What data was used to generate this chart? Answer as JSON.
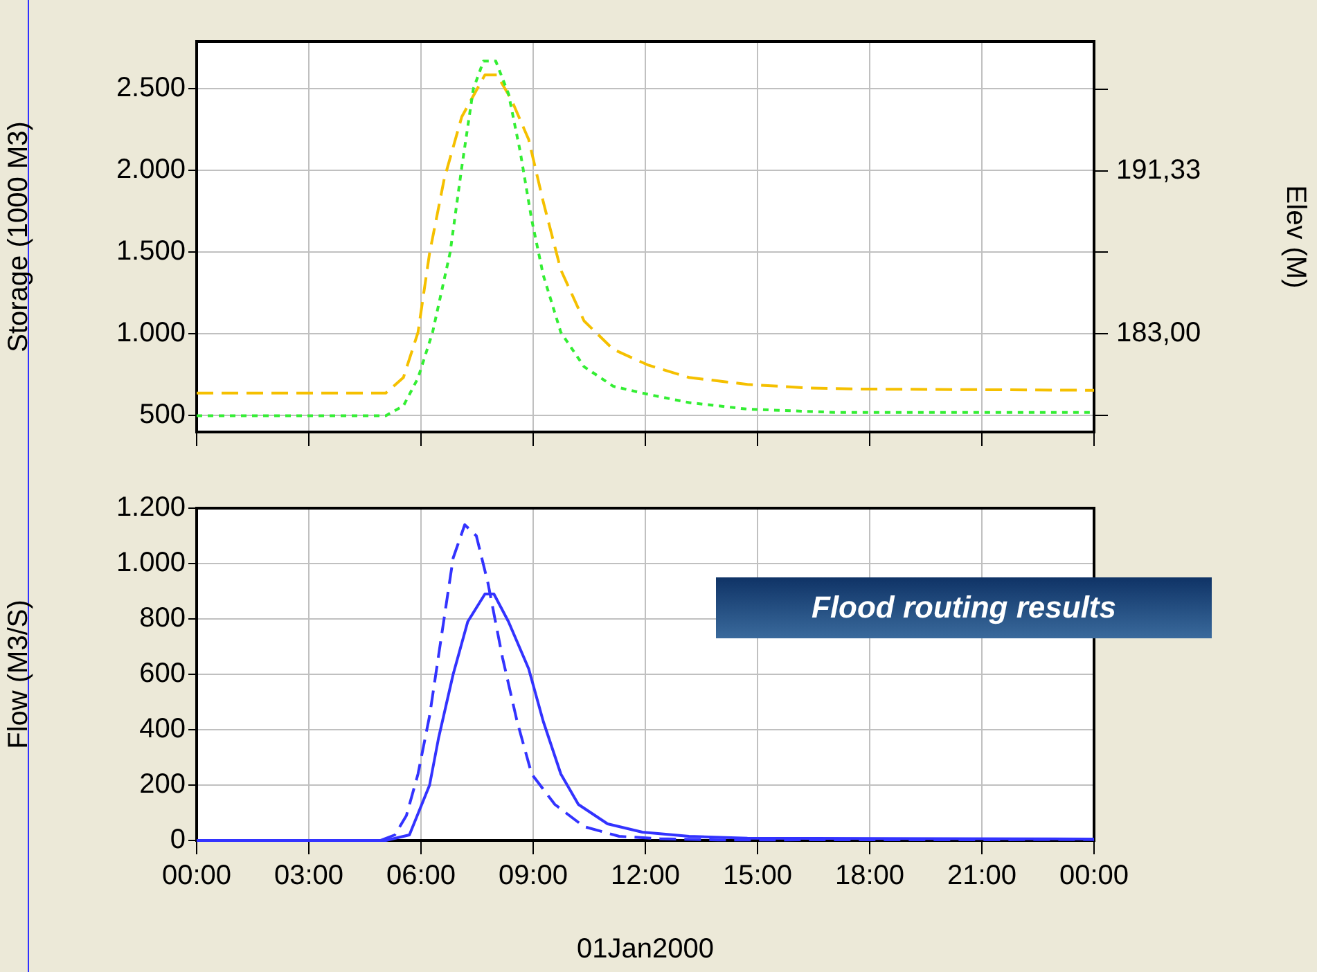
{
  "chart_data": [
    {
      "type": "line",
      "ylabel": "Storage (1000 M3)",
      "y2label": "Elev (M)",
      "xlim": [
        0,
        24
      ],
      "xticks": [
        0,
        3,
        6,
        9,
        12,
        15,
        18,
        21,
        24
      ],
      "ylim": [
        400,
        2790
      ],
      "yticks": [
        500,
        {
          "value": 1000,
          "label": "1.000"
        },
        {
          "value": 1500,
          "label": "1.500"
        },
        {
          "value": 2000,
          "label": "2.000"
        },
        {
          "value": 2500,
          "label": "2.500"
        }
      ],
      "y2lim": [
        178.0,
        197.92
      ],
      "y2ticks": [
        {
          "value": 178.83,
          "label": null
        },
        {
          "value": 183,
          "label": "183,00"
        },
        {
          "value": 187.17,
          "label": null
        },
        {
          "value": 191.33,
          "label": "191,33"
        },
        {
          "value": 195.5,
          "label": null
        }
      ],
      "grid": true,
      "legend": false,
      "tick_labels": "y",
      "marker": "none",
      "series": [
        {
          "color": "#33ee33",
          "line_style": "dotted",
          "x": [
            0,
            5.06,
            5.53,
            5.92,
            6.31,
            6.78,
            7.09,
            7.4,
            7.67,
            8.0,
            8.34,
            8.65,
            8.96,
            9.27,
            9.74,
            10.36,
            11.14,
            12.08,
            13.17,
            14.73,
            17.06,
            20.18,
            24
          ],
          "values": [
            500,
            500,
            560,
            730,
            1010,
            1500,
            2020,
            2500,
            2670,
            2670,
            2470,
            2120,
            1700,
            1360,
            1010,
            800,
            680,
            630,
            580,
            540,
            520,
            520,
            520
          ]
        },
        {
          "color": "#f5c000",
          "line_style": "dashed",
          "axis": "y2",
          "x": [
            0,
            5.06,
            5.53,
            5.92,
            6.23,
            6.62,
            7.09,
            7.71,
            8.03,
            8.42,
            8.88,
            9.27,
            9.74,
            10.36,
            11.14,
            12.08,
            13.17,
            14.73,
            16.28,
            17.84,
            24
          ],
          "values": [
            179.99,
            179.99,
            180.78,
            183.08,
            187.13,
            190.9,
            194.08,
            196.22,
            196.22,
            194.95,
            192.92,
            189.74,
            186.27,
            183.67,
            182.22,
            181.41,
            180.78,
            180.43,
            180.25,
            180.19,
            180.13
          ]
        }
      ]
    },
    {
      "type": "line",
      "ylabel": "Flow (M3/S)",
      "xlabel": "01Jan2000",
      "xlim": [
        0,
        24
      ],
      "xticks": [
        {
          "value": 0,
          "label": "00:00"
        },
        {
          "value": 3,
          "label": "03:00"
        },
        {
          "value": 6,
          "label": "06:00"
        },
        {
          "value": 9,
          "label": "09:00"
        },
        {
          "value": 12,
          "label": "12:00"
        },
        {
          "value": 15,
          "label": "15:00"
        },
        {
          "value": 18,
          "label": "18:00"
        },
        {
          "value": 21,
          "label": "21:00"
        },
        {
          "value": 24,
          "label": "00:00"
        }
      ],
      "ylim": [
        0,
        1200
      ],
      "yticks": [
        0,
        200,
        400,
        600,
        800,
        {
          "value": 1000,
          "label": "1.000"
        },
        {
          "value": 1200,
          "label": "1.200"
        }
      ],
      "grid": true,
      "legend": false,
      "marker": "none",
      "annotations": [
        "Flood routing results"
      ],
      "series": [
        {
          "color": "#3333ff",
          "line_style": "dashed",
          "x": [
            4.91,
            5.3,
            5.61,
            5.92,
            6.23,
            6.55,
            6.86,
            7.17,
            7.48,
            7.79,
            8.18,
            8.57,
            8.96,
            9.58,
            10.36,
            11.3,
            12.39,
            13.95,
            24
          ],
          "values": [
            0,
            20,
            90,
            240,
            450,
            740,
            1020,
            1140,
            1100,
            930,
            660,
            430,
            240,
            130,
            50,
            15,
            6,
            2,
            3
          ]
        },
        {
          "color": "#3333ff",
          "line_style": "solid",
          "x": [
            0,
            5.06,
            5.69,
            6.23,
            6.47,
            6.86,
            7.25,
            7.71,
            7.95,
            8.34,
            8.88,
            9.27,
            9.74,
            10.21,
            10.99,
            11.92,
            13.17,
            14.73,
            24
          ],
          "values": [
            0,
            0,
            20,
            200,
            370,
            600,
            790,
            890,
            890,
            790,
            620,
            430,
            240,
            130,
            60,
            30,
            15,
            8,
            5
          ]
        }
      ]
    }
  ]
}
